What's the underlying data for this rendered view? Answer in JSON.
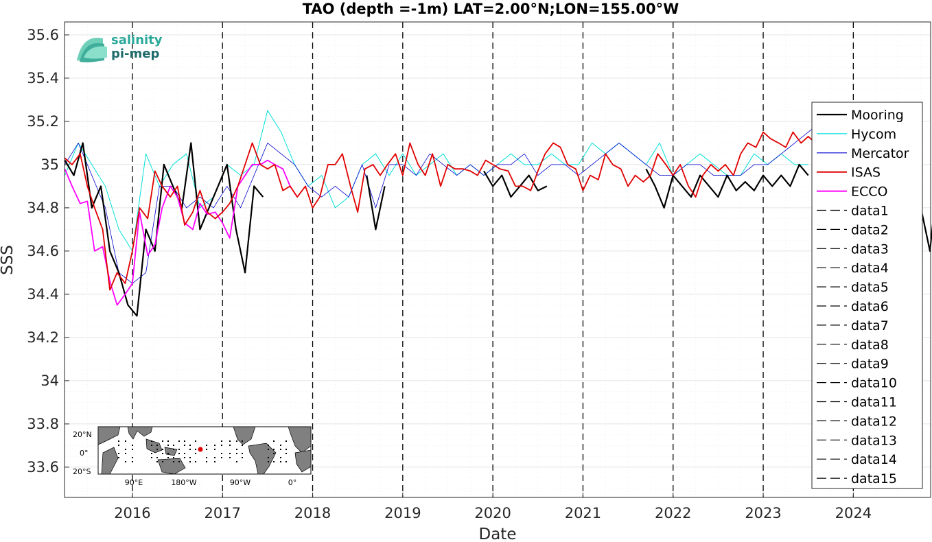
{
  "chart_data": {
    "type": "line",
    "title": "TAO (depth =-1m) LAT=2.00°N;LON=155.00°W",
    "xlabel": "Date",
    "ylabel": "SSS",
    "xlim": [
      "2015-04-01",
      "2024-11-10"
    ],
    "ylim": [
      33.46,
      35.66
    ],
    "x_ticks": [
      "2016",
      "2017",
      "2018",
      "2019",
      "2020",
      "2021",
      "2022",
      "2023",
      "2024"
    ],
    "y_ticks": [
      "33.6",
      "33.8",
      "34",
      "34.2",
      "34.4",
      "34.6",
      "34.8",
      "35",
      "35.2",
      "35.4",
      "35.6"
    ],
    "grid": true,
    "minor_grid": true,
    "legend_position": "right",
    "vertical_markers": [
      2016,
      2017,
      2018,
      2019,
      2020,
      2021,
      2022,
      2023,
      2024
    ],
    "series": [
      {
        "name": "Mooring",
        "color": "#000000",
        "x": [
          2015.25,
          2015.35,
          2015.45,
          2015.55,
          2015.65,
          2015.75,
          2015.85,
          2015.95,
          2016.05,
          2016.15,
          2016.25,
          2016.35,
          2016.45,
          2016.55,
          2016.65,
          2016.75,
          2016.85,
          2016.95,
          2017.05,
          2017.15,
          2017.25,
          2017.35,
          2017.45,
          2018.6,
          2018.7,
          2018.8,
          2019.9,
          2020.0,
          2020.1,
          2020.2,
          2020.3,
          2020.4,
          2020.5,
          2020.6,
          2021.7,
          2021.8,
          2021.9,
          2022.0,
          2022.1,
          2022.2,
          2022.3,
          2022.4,
          2022.5,
          2022.6,
          2022.7,
          2022.8,
          2022.9,
          2023.0,
          2023.1,
          2023.2,
          2023.3,
          2023.4,
          2023.5,
          2024.75,
          2024.8,
          2024.85,
          2024.9
        ],
        "y": [
          35.02,
          34.95,
          35.1,
          34.8,
          34.9,
          34.6,
          34.5,
          34.35,
          34.3,
          34.7,
          34.6,
          35.0,
          34.9,
          34.8,
          35.1,
          34.7,
          34.8,
          34.9,
          35.0,
          34.7,
          34.5,
          34.9,
          34.85,
          34.95,
          34.7,
          34.9,
          34.97,
          34.9,
          34.95,
          34.85,
          34.9,
          34.95,
          34.88,
          34.9,
          34.98,
          34.9,
          34.8,
          34.95,
          34.9,
          34.85,
          34.95,
          34.9,
          34.85,
          34.95,
          34.88,
          34.92,
          34.88,
          34.95,
          34.9,
          34.95,
          34.9,
          35.0,
          34.95,
          34.8,
          34.7,
          34.6,
          34.8
        ]
      },
      {
        "name": "Hycom",
        "color": "#00e0d8",
        "x": [
          2015.25,
          2015.4,
          2015.55,
          2015.7,
          2015.85,
          2016.0,
          2016.15,
          2016.3,
          2016.45,
          2016.6,
          2016.75,
          2016.9,
          2017.05,
          2017.2,
          2017.35,
          2017.5,
          2017.65,
          2017.8,
          2017.95,
          2018.1,
          2018.25,
          2018.4,
          2018.55,
          2018.7,
          2018.85,
          2019.0,
          2019.15,
          2019.3,
          2019.45,
          2019.6,
          2019.75,
          2019.9,
          2020.05,
          2020.2,
          2020.35,
          2020.5,
          2020.65,
          2020.8,
          2020.95,
          2021.1,
          2021.25,
          2021.4,
          2021.55,
          2021.7,
          2021.85,
          2022.0,
          2022.15,
          2022.3,
          2022.45,
          2022.6,
          2022.75,
          2022.9,
          2023.05,
          2023.2,
          2023.35,
          2023.5
        ],
        "y": [
          34.95,
          35.1,
          35.0,
          34.9,
          34.7,
          34.6,
          35.05,
          34.9,
          35.0,
          35.05,
          34.8,
          34.85,
          35.0,
          34.95,
          35.0,
          35.25,
          35.15,
          35.0,
          34.9,
          34.95,
          34.8,
          34.85,
          35.0,
          35.05,
          34.95,
          35.05,
          34.95,
          35.0,
          35.05,
          34.95,
          35.0,
          34.95,
          35.0,
          35.05,
          35.0,
          35.0,
          35.05,
          35.0,
          35.0,
          35.1,
          35.05,
          35.1,
          35.05,
          35.0,
          35.1,
          34.95,
          35.0,
          35.05,
          35.0,
          34.95,
          34.95,
          35.05,
          35.0,
          35.05,
          35.0,
          35.0
        ]
      },
      {
        "name": "Mercator",
        "color": "#0000d0",
        "x": [
          2015.25,
          2015.4,
          2015.55,
          2015.7,
          2015.85,
          2016.0,
          2016.15,
          2016.3,
          2016.45,
          2016.6,
          2016.75,
          2016.9,
          2017.05,
          2017.2,
          2017.35,
          2017.5,
          2017.65,
          2017.8,
          2017.95,
          2018.1,
          2018.25,
          2018.4,
          2018.55,
          2018.7,
          2018.85,
          2019.0,
          2019.15,
          2019.3,
          2019.45,
          2019.6,
          2019.75,
          2019.9,
          2020.05,
          2020.2,
          2020.35,
          2020.5,
          2020.65,
          2020.8,
          2020.95,
          2021.1,
          2021.25,
          2021.4,
          2021.55,
          2021.7,
          2021.85,
          2022.0,
          2022.15,
          2022.3,
          2022.45,
          2022.6,
          2022.75,
          2022.9,
          2023.05,
          2023.2,
          2023.35,
          2023.5,
          2023.65,
          2023.8,
          2023.95
        ],
        "y": [
          35.0,
          35.1,
          34.95,
          34.8,
          34.5,
          34.45,
          34.5,
          34.9,
          34.9,
          34.8,
          34.85,
          34.8,
          34.9,
          34.8,
          34.95,
          35.1,
          35.05,
          35.0,
          34.9,
          34.85,
          34.9,
          34.85,
          35.0,
          34.8,
          35.0,
          35.0,
          34.95,
          35.05,
          35.0,
          34.95,
          35.0,
          34.95,
          35.0,
          35.0,
          35.05,
          34.95,
          35.0,
          35.0,
          34.95,
          35.0,
          35.05,
          35.1,
          35.05,
          35.0,
          34.95,
          34.95,
          35.0,
          35.0,
          34.95,
          34.95,
          34.95,
          35.0,
          35.0,
          35.05,
          35.1,
          35.15,
          35.2,
          35.25,
          35.25
        ]
      },
      {
        "name": "ISAS",
        "color": "#e00000",
        "x": [
          2015.25,
          2015.33,
          2015.42,
          2015.5,
          2015.58,
          2015.67,
          2015.75,
          2015.83,
          2015.92,
          2016.0,
          2016.08,
          2016.17,
          2016.25,
          2016.33,
          2016.42,
          2016.5,
          2016.58,
          2016.67,
          2016.75,
          2016.83,
          2016.92,
          2017.0,
          2017.08,
          2017.17,
          2017.25,
          2017.33,
          2017.42,
          2017.5,
          2017.58,
          2017.67,
          2017.75,
          2017.83,
          2017.92,
          2018.0,
          2018.08,
          2018.17,
          2018.25,
          2018.33,
          2018.42,
          2018.5,
          2018.58,
          2018.67,
          2018.75,
          2018.83,
          2018.92,
          2019.0,
          2019.08,
          2019.17,
          2019.25,
          2019.33,
          2019.42,
          2019.5,
          2019.58,
          2019.67,
          2019.75,
          2019.83,
          2019.92,
          2020.0,
          2020.08,
          2020.17,
          2020.25,
          2020.33,
          2020.42,
          2020.5,
          2020.58,
          2020.67,
          2020.75,
          2020.83,
          2020.92,
          2021.0,
          2021.08,
          2021.17,
          2021.25,
          2021.33,
          2021.42,
          2021.5,
          2021.58,
          2021.67,
          2021.75,
          2021.83,
          2021.92,
          2022.0,
          2022.08,
          2022.17,
          2022.25,
          2022.33,
          2022.42,
          2022.5,
          2022.58,
          2022.67,
          2022.75,
          2022.83,
          2022.92,
          2023.0,
          2023.08,
          2023.17,
          2023.25,
          2023.33,
          2023.42,
          2023.5,
          2023.58,
          2023.67,
          2023.75,
          2023.83,
          2023.92,
          2024.0,
          2024.08,
          2024.17,
          2024.25,
          2024.33,
          2024.42,
          2024.5,
          2024.58,
          2024.67,
          2024.75,
          2024.83
        ],
        "y": [
          35.03,
          35.0,
          35.05,
          34.9,
          34.8,
          34.7,
          34.42,
          34.5,
          34.45,
          34.6,
          34.8,
          34.75,
          34.97,
          34.9,
          34.85,
          34.9,
          34.72,
          34.78,
          34.88,
          34.78,
          34.75,
          34.78,
          34.82,
          34.9,
          35.0,
          35.1,
          35.0,
          34.98,
          35.0,
          34.88,
          34.9,
          34.85,
          34.9,
          34.8,
          34.85,
          35.0,
          35.0,
          35.05,
          34.9,
          34.78,
          34.98,
          35.0,
          34.95,
          35.0,
          35.05,
          34.95,
          35.1,
          35.0,
          34.95,
          35.05,
          34.9,
          35.0,
          34.98,
          34.98,
          34.97,
          34.95,
          35.02,
          35.0,
          34.98,
          34.97,
          34.9,
          34.9,
          34.88,
          34.97,
          35.05,
          35.1,
          35.08,
          35.0,
          34.98,
          34.88,
          34.95,
          34.93,
          35.05,
          35.0,
          34.98,
          34.9,
          34.95,
          34.92,
          34.95,
          35.05,
          35.0,
          34.95,
          35.0,
          34.9,
          34.85,
          34.95,
          35.0,
          34.97,
          35.0,
          34.95,
          35.05,
          35.1,
          35.08,
          35.15,
          35.12,
          35.1,
          35.08,
          35.15,
          35.1,
          35.13,
          35.1,
          35.12,
          35.2,
          35.25,
          35.15,
          35.2,
          35.15,
          35.1,
          35.05,
          35.0,
          35.0,
          34.95,
          34.9,
          34.8,
          34.85,
          34.9
        ],
        "x_visible_max": 2024.0
      },
      {
        "name": "ECCO",
        "color": "#ff00ff",
        "x": [
          2015.25,
          2015.33,
          2015.42,
          2015.5,
          2015.58,
          2015.67,
          2015.75,
          2015.83,
          2015.92,
          2016.0,
          2016.08,
          2016.17,
          2016.25,
          2016.33,
          2016.42,
          2016.5,
          2016.58,
          2016.67,
          2016.75,
          2016.83,
          2016.92,
          2017.0,
          2017.08,
          2017.17,
          2017.25,
          2017.33,
          2017.42,
          2017.5,
          2017.58,
          2017.67,
          2017.75,
          2017.83
        ],
        "y": [
          34.98,
          34.9,
          34.82,
          34.83,
          34.6,
          34.62,
          34.46,
          34.35,
          34.4,
          34.45,
          34.78,
          34.58,
          34.63,
          34.8,
          34.9,
          34.85,
          34.73,
          34.7,
          34.82,
          34.77,
          34.78,
          34.73,
          34.66,
          34.9,
          34.95,
          35.0,
          35.0,
          35.02,
          35.0,
          34.98,
          34.9,
          34.85
        ]
      },
      {
        "name": "data1",
        "color": "#000000"
      },
      {
        "name": "data2",
        "color": "#000000"
      },
      {
        "name": "data3",
        "color": "#000000"
      },
      {
        "name": "data4",
        "color": "#000000"
      },
      {
        "name": "data5",
        "color": "#000000"
      },
      {
        "name": "data6",
        "color": "#000000"
      },
      {
        "name": "data7",
        "color": "#000000"
      },
      {
        "name": "data8",
        "color": "#000000"
      },
      {
        "name": "data9",
        "color": "#000000"
      },
      {
        "name": "data10",
        "color": "#000000"
      },
      {
        "name": "data11",
        "color": "#000000"
      },
      {
        "name": "data12",
        "color": "#000000"
      },
      {
        "name": "data13",
        "color": "#000000"
      },
      {
        "name": "data14",
        "color": "#000000"
      },
      {
        "name": "data15",
        "color": "#000000"
      }
    ]
  },
  "logo": {
    "line1": "salinity",
    "line2": "pi-mep",
    "color_line1": "#2aa89a",
    "color_line2": "#1e6b6b"
  },
  "inset_map": {
    "lat_labels": [
      "20°N",
      "0°",
      "20°S"
    ],
    "lon_labels": [
      "90°E",
      "180°W",
      "90°W",
      "0°"
    ],
    "marker_color": "#e00000"
  }
}
